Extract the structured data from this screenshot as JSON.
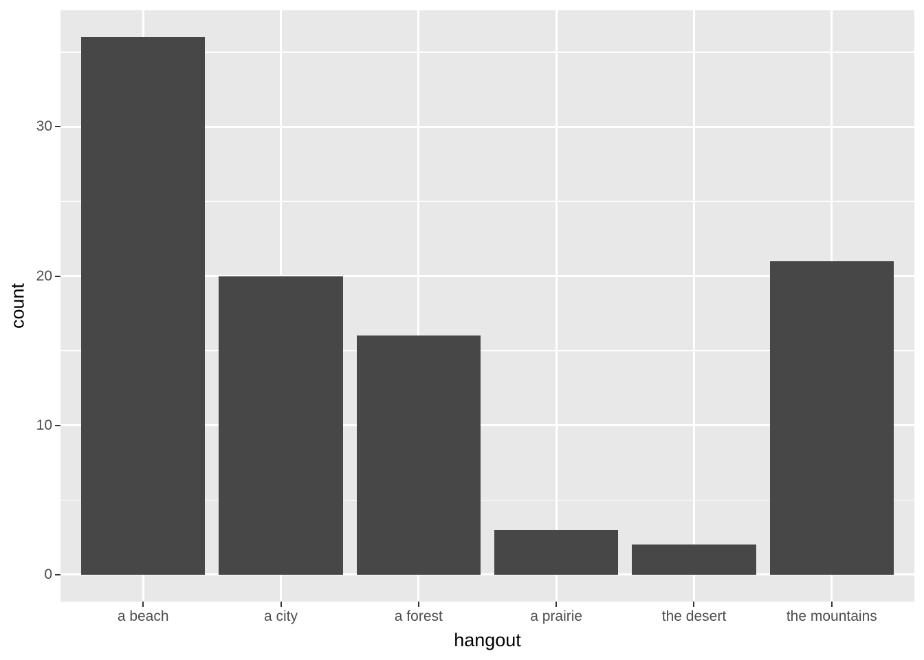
{
  "chart_data": {
    "type": "bar",
    "title": "",
    "xlabel": "hangout",
    "ylabel": "count",
    "categories": [
      "a beach",
      "a city",
      "a forest",
      "a prairie",
      "the desert",
      "the mountains"
    ],
    "values": [
      36,
      20,
      16,
      3,
      2,
      21
    ],
    "ylim": [
      -1.8,
      37.8
    ],
    "yticks": [
      0,
      10,
      20,
      30
    ],
    "yminor_ticks": [
      5,
      15,
      25,
      35
    ],
    "legend": "none",
    "grid": "on",
    "style": "ggplot2-theme-grey",
    "colors": {
      "bar_fill": "#474747",
      "panel_background": "#E8E8E8",
      "gridline": "#FFFFFF",
      "tick_label": "#4D4D4D",
      "tick_mark": "#333333",
      "axis_title": "#000000",
      "figure_background": "#FFFFFF"
    }
  }
}
